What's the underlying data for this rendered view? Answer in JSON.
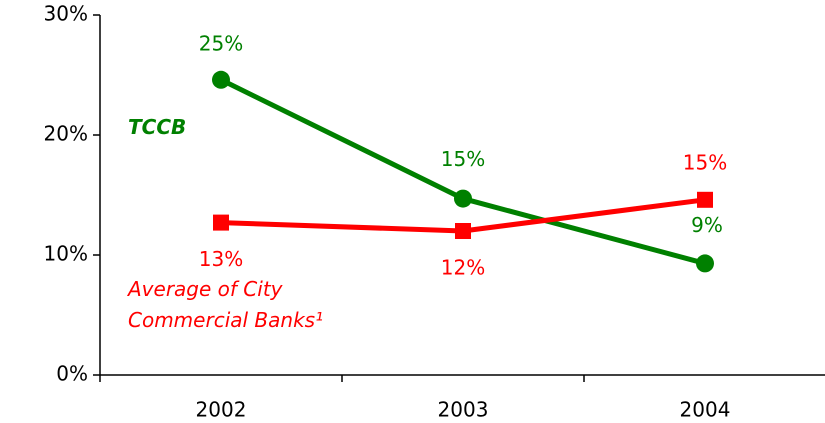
{
  "chart_data": {
    "type": "line",
    "categories": [
      "2002",
      "2003",
      "2004"
    ],
    "series": [
      {
        "name": "TCCB",
        "color": "#008000",
        "marker": "circle",
        "values": [
          24.6,
          14.7,
          9.3
        ],
        "value_labels": [
          "25%",
          "15%",
          "9%"
        ]
      },
      {
        "name": "Average of City Commercial Banks¹",
        "color": "#ff0000",
        "marker": "square",
        "values": [
          12.7,
          12.0,
          14.6
        ],
        "value_labels": [
          "13%",
          "12%",
          "15%"
        ]
      }
    ],
    "ylim": [
      0,
      30
    ],
    "yticks": [
      {
        "value": 0,
        "label": "0%"
      },
      {
        "value": 10,
        "label": "10%"
      },
      {
        "value": 20,
        "label": "20%"
      },
      {
        "value": 30,
        "label": "30%"
      }
    ]
  }
}
